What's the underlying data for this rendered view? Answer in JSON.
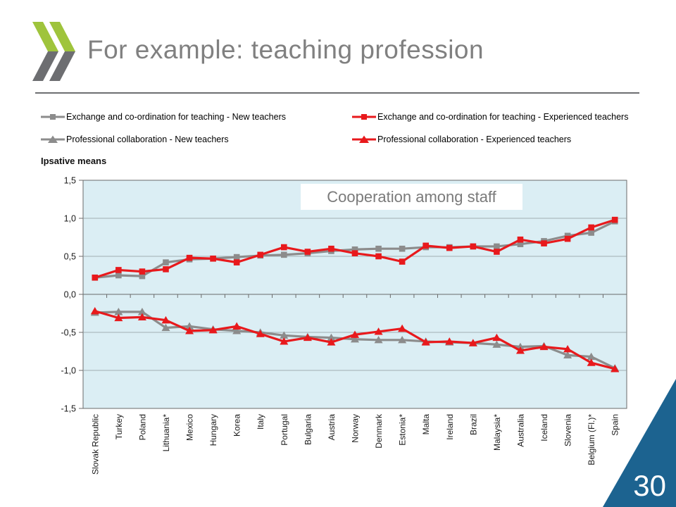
{
  "slide": {
    "title": "For example: teaching profession",
    "page_number": "30",
    "logo_green": "#9fc43c",
    "logo_gray": "#6d6e71",
    "corner_blue": "#1c6390",
    "title_color": "#808080"
  },
  "chart_data": {
    "type": "line",
    "title": "Cooperation among staff",
    "ylabel": "Ipsative means",
    "ylim": [
      -1.5,
      1.5
    ],
    "y_ticks": [
      "1,5",
      "1,0",
      "0,5",
      "0,0",
      "-0,5",
      "-1,0",
      "-1,5"
    ],
    "grid": true,
    "legend_position": "top",
    "plot_bg": "#dbeef4",
    "grid_color": "#8e979c",
    "axis_color": "#6a6a6a",
    "categories": [
      "Slovak Republic",
      "Turkey",
      "Poland",
      "Lithuania*",
      "Mexico",
      "Hungary",
      "Korea",
      "Italy",
      "Portugal",
      "Bulgaria",
      "Austria",
      "Norway",
      "Denmark",
      "Estonia*",
      "Malta",
      "Ireland",
      "Brazil",
      "Malaysia*",
      "Australia",
      "Iceland",
      "Slovenia",
      "Belgium (Fl.)*",
      "Spain"
    ],
    "series": [
      {
        "name": "Exchange and co-ordination for teaching - New teachers",
        "color": "#8c8c8c",
        "marker": "square",
        "values": [
          0.22,
          0.25,
          0.24,
          0.42,
          0.46,
          0.47,
          0.49,
          0.51,
          0.52,
          0.54,
          0.57,
          0.59,
          0.6,
          0.6,
          0.62,
          0.62,
          0.63,
          0.63,
          0.66,
          0.7,
          0.77,
          0.81,
          0.96
        ]
      },
      {
        "name": "Exchange and co-ordination for teaching - Experienced teachers",
        "color": "#e8191c",
        "marker": "square",
        "values": [
          0.22,
          0.32,
          0.3,
          0.33,
          0.48,
          0.47,
          0.42,
          0.52,
          0.62,
          0.56,
          0.6,
          0.54,
          0.5,
          0.43,
          0.64,
          0.61,
          0.63,
          0.56,
          0.72,
          0.67,
          0.73,
          0.88,
          0.98
        ]
      },
      {
        "name": "Professional collaboration - New teachers",
        "color": "#8c8c8c",
        "marker": "triangle",
        "values": [
          -0.24,
          -0.23,
          -0.23,
          -0.44,
          -0.42,
          -0.46,
          -0.48,
          -0.5,
          -0.54,
          -0.56,
          -0.57,
          -0.59,
          -0.6,
          -0.6,
          -0.62,
          -0.63,
          -0.64,
          -0.66,
          -0.69,
          -0.68,
          -0.8,
          -0.82,
          -0.97
        ]
      },
      {
        "name": "Professional collaboration - Experienced teachers",
        "color": "#e8191c",
        "marker": "triangle",
        "values": [
          -0.22,
          -0.31,
          -0.3,
          -0.34,
          -0.48,
          -0.47,
          -0.42,
          -0.52,
          -0.62,
          -0.57,
          -0.63,
          -0.53,
          -0.49,
          -0.45,
          -0.63,
          -0.62,
          -0.64,
          -0.57,
          -0.74,
          -0.69,
          -0.72,
          -0.9,
          -0.98
        ]
      }
    ]
  }
}
